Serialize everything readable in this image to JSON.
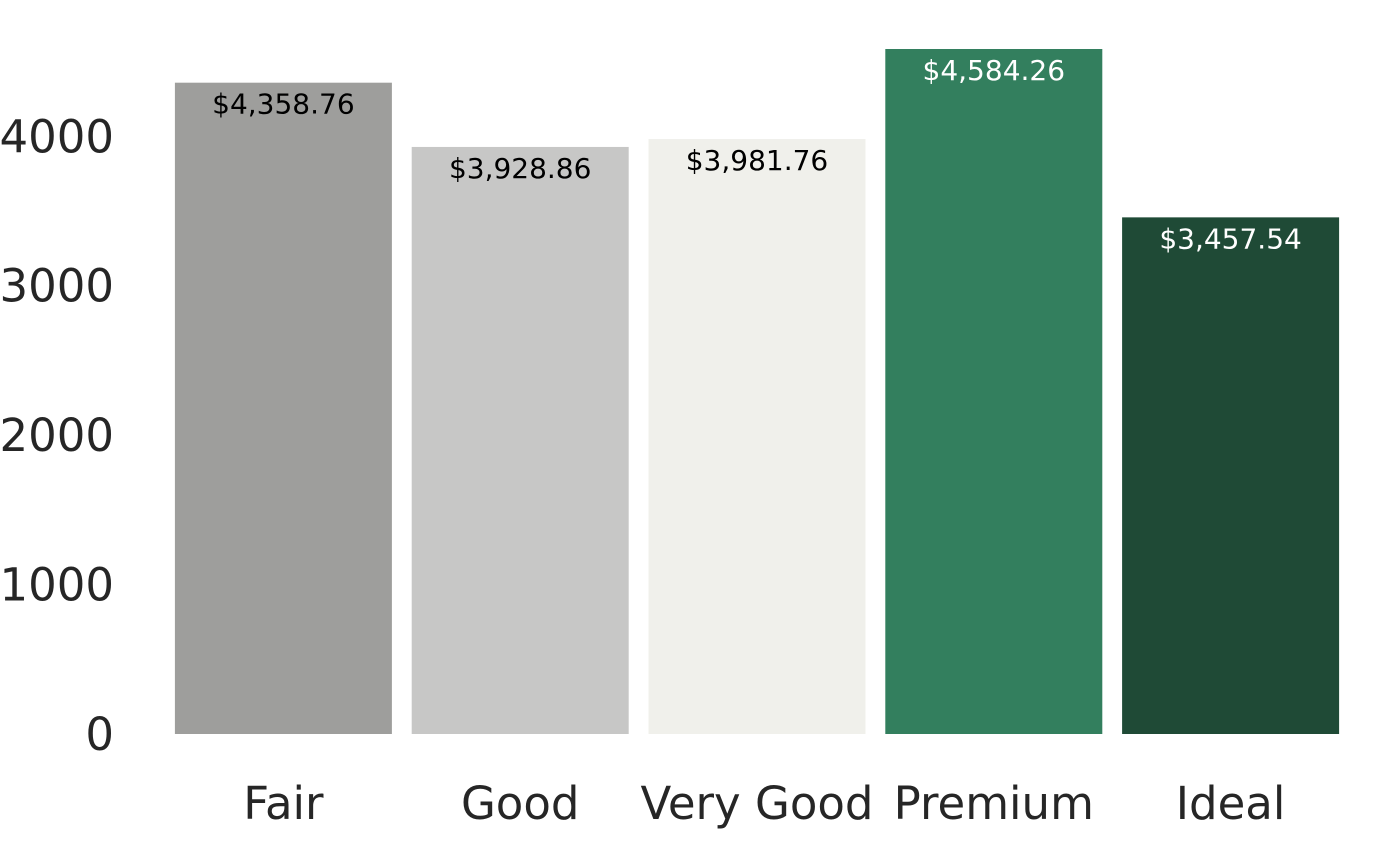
{
  "chart_data": {
    "type": "bar",
    "title": "",
    "xlabel": "",
    "ylabel": "",
    "categories": [
      "Fair",
      "Good",
      "Very Good",
      "Premium",
      "Ideal"
    ],
    "values": [
      4358.76,
      3928.86,
      3981.76,
      4584.26,
      3457.54
    ],
    "data_labels": [
      "$4,358.76",
      "$3,928.86",
      "$3,981.76",
      "$4,584.26",
      "$3,457.54"
    ],
    "colors": [
      "#9e9e9c",
      "#c7c7c6",
      "#f0f0eb",
      "#337f5e",
      "#1f4a36"
    ],
    "label_colors": [
      "#000000",
      "#000000",
      "#000000",
      "#ffffff",
      "#ffffff"
    ],
    "y_ticks": [
      0,
      1000,
      2000,
      3000,
      4000
    ],
    "ylim": [
      0,
      4584.26
    ],
    "grid": false,
    "legend": "none"
  }
}
